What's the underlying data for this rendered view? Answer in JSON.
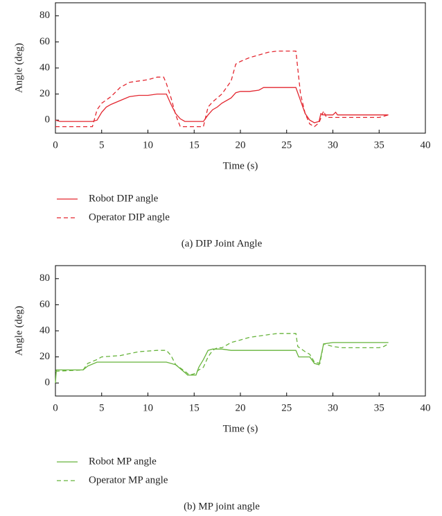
{
  "chart_data": [
    {
      "type": "line",
      "caption": "(a)  DIP Joint Angle",
      "xlabel": "Time (s)",
      "ylabel": "Angle (deg)",
      "xlim": [
        0,
        40
      ],
      "xticks": [
        0,
        5,
        10,
        15,
        20,
        25,
        30,
        35,
        40
      ],
      "ylim": [
        -10,
        90
      ],
      "yticks": [
        0,
        20,
        40,
        60,
        80
      ],
      "series": [
        {
          "name": "Robot DIP angle",
          "color": "#e3262f",
          "dash": false,
          "x": [
            0,
            0.5,
            4,
            4.5,
            5,
            5.5,
            6,
            7,
            8,
            9,
            10,
            11,
            12,
            12.5,
            13,
            13.5,
            14,
            16,
            16.5,
            17,
            17.5,
            18,
            19,
            19.5,
            20,
            21,
            22,
            22.5,
            24,
            26,
            26.5,
            27,
            27.5,
            28,
            28.5,
            28.7,
            29,
            30,
            30.3,
            30.5,
            36
          ],
          "values": [
            0,
            -1,
            -1,
            0,
            6,
            10,
            12,
            15,
            18,
            19,
            19,
            20,
            20,
            12,
            5,
            1,
            -1,
            -1,
            4,
            8,
            10,
            13,
            17,
            21,
            22,
            22,
            23,
            25,
            25,
            25,
            15,
            5,
            0,
            -2,
            -1,
            5,
            4,
            4,
            6,
            4,
            4
          ]
        },
        {
          "name": "Operator DIP angle",
          "color": "#e3262f",
          "dash": true,
          "x": [
            0,
            4,
            4.5,
            5,
            6,
            7,
            8,
            9,
            10,
            11,
            11.7,
            12,
            12.5,
            13,
            13.5,
            16,
            16.5,
            17,
            18,
            19,
            19.5,
            20,
            21,
            22,
            23,
            24,
            26,
            26.5,
            27,
            27.5,
            28,
            28.5,
            29,
            29.3,
            31,
            35,
            35.5,
            36
          ],
          "values": [
            -5,
            -5,
            8,
            13,
            18,
            25,
            29,
            30,
            31,
            33,
            33,
            28,
            17,
            4,
            -5,
            -5,
            10,
            14,
            20,
            30,
            43,
            45,
            48,
            50,
            52,
            53,
            53,
            20,
            5,
            -3,
            -5,
            -2,
            7,
            2,
            2,
            2,
            3,
            4
          ]
        }
      ]
    },
    {
      "type": "line",
      "caption": "(b)  MP joint angle",
      "xlabel": "Time (s)",
      "ylabel": "Angle (deg)",
      "xlim": [
        0,
        40
      ],
      "xticks": [
        0,
        5,
        10,
        15,
        20,
        25,
        30,
        35,
        40
      ],
      "ylim": [
        -10,
        90
      ],
      "yticks": [
        0,
        20,
        40,
        60,
        80
      ],
      "series": [
        {
          "name": "Robot MP angle",
          "color": "#66b33a",
          "dash": false,
          "x": [
            0,
            0.1,
            3,
            3.5,
            4.5,
            12,
            13,
            14,
            14.3,
            15.2,
            15.5,
            16,
            16.5,
            17,
            18,
            19,
            26,
            26.3,
            27.5,
            28,
            28.5,
            28.7,
            29,
            30,
            36
          ],
          "values": [
            0,
            10,
            10,
            13,
            16,
            16,
            14,
            8,
            6,
            6,
            12,
            18,
            25,
            26,
            26,
            25,
            25,
            20,
            20,
            15,
            14,
            20,
            30,
            31,
            31
          ]
        },
        {
          "name": "Operator MP angle",
          "color": "#66b33a",
          "dash": true,
          "x": [
            0,
            3,
            3.5,
            4.5,
            5,
            7,
            9,
            11,
            12,
            12.5,
            13,
            14,
            14.5,
            15,
            15.5,
            16,
            16.5,
            17,
            17.5,
            18,
            19,
            20,
            21,
            22,
            23,
            24,
            26,
            26.2,
            27,
            27.5,
            28,
            28.6,
            29,
            30,
            31,
            35,
            35.5,
            36
          ],
          "values": [
            9,
            10,
            15,
            18,
            20,
            21,
            24,
            25,
            25,
            21,
            14,
            9,
            6,
            7,
            10,
            12,
            20,
            25,
            27,
            27,
            31,
            33,
            35,
            36,
            37,
            38,
            38,
            28,
            24,
            22,
            16,
            15,
            30,
            28,
            27,
            27,
            28,
            30
          ]
        }
      ]
    }
  ]
}
